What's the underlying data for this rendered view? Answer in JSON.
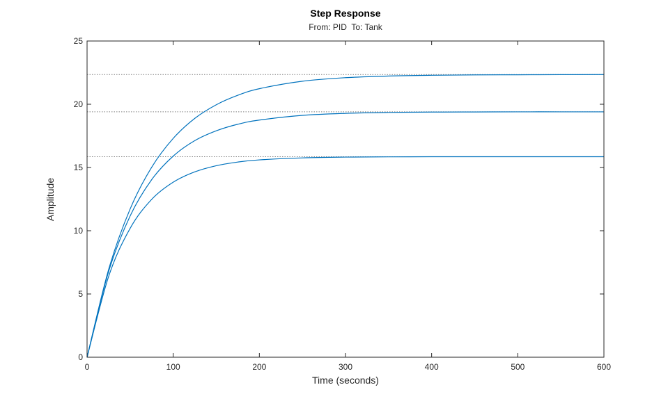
{
  "chart_data": {
    "type": "line",
    "title": "Step Response",
    "subtitle": "From: PID  To: Tank",
    "xlabel": "Time (seconds)",
    "ylabel": "Amplitude",
    "xlim": [
      0,
      600
    ],
    "ylim": [
      0,
      25
    ],
    "x_ticks": [
      0,
      100,
      200,
      300,
      400,
      500,
      600
    ],
    "y_ticks": [
      0,
      5,
      10,
      15,
      20,
      25
    ],
    "grid": false,
    "box": true,
    "colors": {
      "series": "#0072bd",
      "steady_state_line": "#7f7f7f",
      "axes": "#262626"
    },
    "series": [
      {
        "steady_state": 22.35,
        "x": [
          0,
          25,
          50,
          75,
          100,
          125,
          150,
          175,
          200,
          250,
          300,
          350,
          400,
          450,
          500,
          550,
          600
        ],
        "y": [
          0,
          6.93,
          11.72,
          15.02,
          17.3,
          18.88,
          19.96,
          20.71,
          21.23,
          21.82,
          22.1,
          22.23,
          22.29,
          22.32,
          22.33,
          22.34,
          22.35
        ]
      },
      {
        "steady_state": 19.4,
        "x": [
          0,
          25,
          50,
          75,
          100,
          125,
          150,
          175,
          200,
          250,
          300,
          350,
          400,
          450,
          500,
          550,
          600
        ],
        "y": [
          0,
          6.77,
          11.17,
          14.04,
          15.9,
          17.12,
          17.9,
          18.42,
          18.75,
          19.12,
          19.28,
          19.35,
          19.38,
          19.39,
          19.4,
          19.4,
          19.4
        ]
      },
      {
        "steady_state": 15.85,
        "x": [
          0,
          25,
          50,
          75,
          100,
          125,
          150,
          175,
          200,
          250,
          300,
          350,
          400,
          450,
          500,
          550,
          600
        ],
        "y": [
          0,
          6.38,
          10.19,
          12.48,
          13.84,
          14.65,
          15.14,
          15.43,
          15.6,
          15.76,
          15.82,
          15.84,
          15.85,
          15.85,
          15.85,
          15.85,
          15.85
        ]
      }
    ]
  }
}
